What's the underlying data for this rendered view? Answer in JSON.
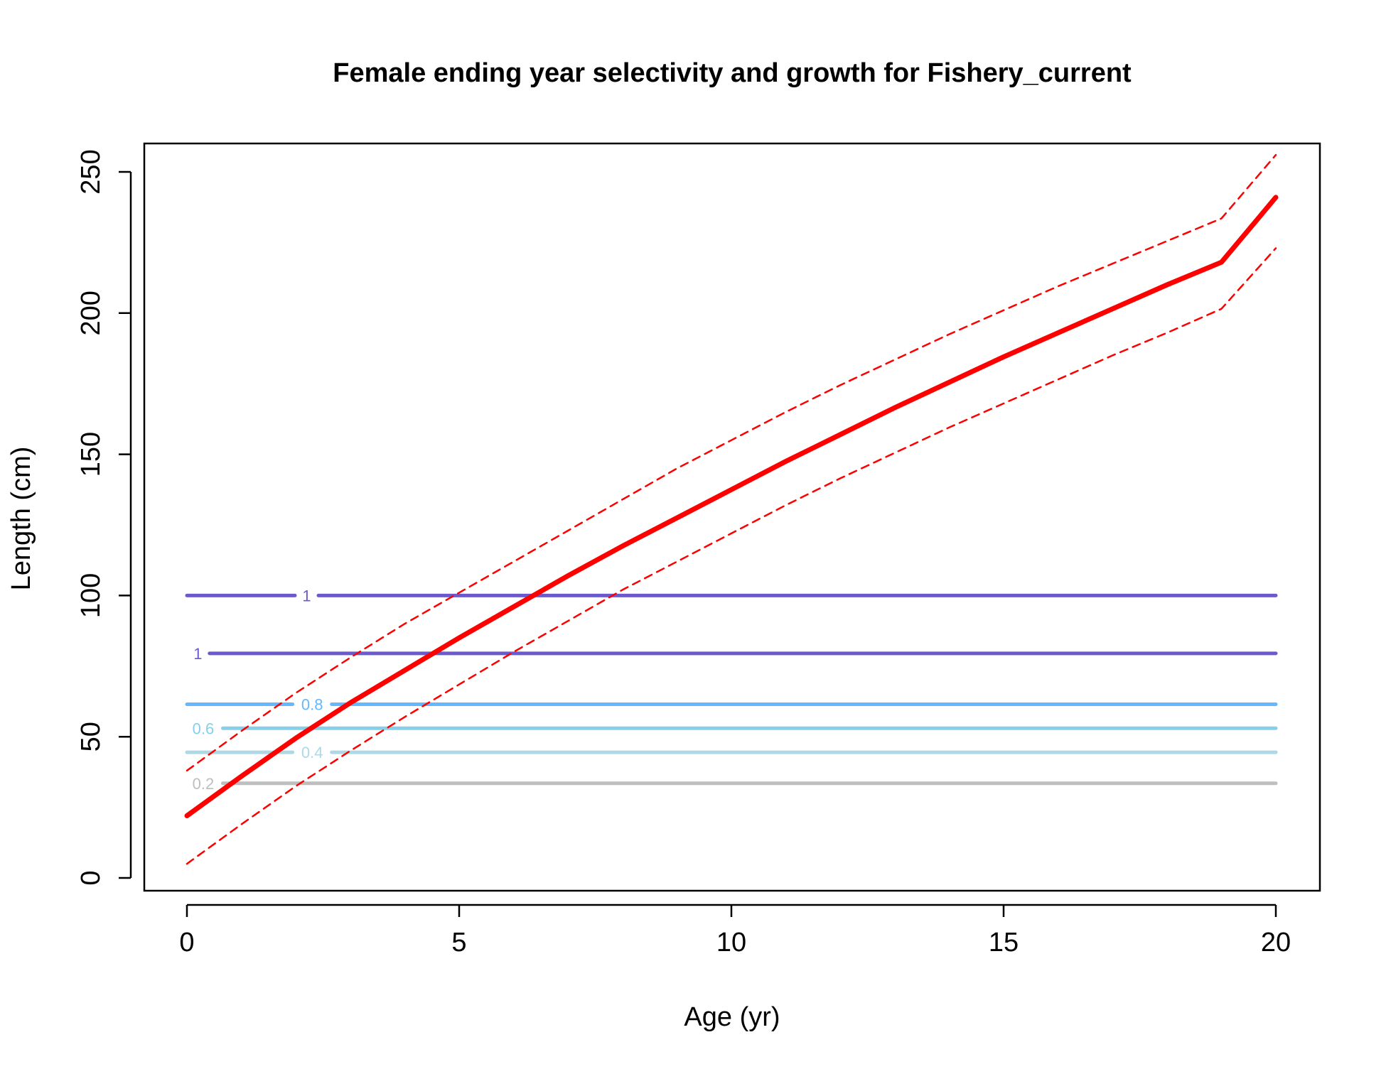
{
  "chart_data": {
    "type": "line",
    "title": "Female ending year selectivity and growth for Fishery_current",
    "xlabel": "Age (yr)",
    "ylabel": "Length (cm)",
    "xlim": [
      0,
      20
    ],
    "ylim": [
      0,
      250
    ],
    "x_ticks": [
      0,
      5,
      10,
      15,
      20
    ],
    "y_ticks": [
      0,
      50,
      100,
      150,
      200,
      250
    ],
    "grid": false,
    "legend": "none",
    "series": [
      {
        "kind": "mean",
        "color": "#ff0000",
        "style": "solid",
        "x": [
          0,
          1,
          2,
          3,
          4,
          5,
          6,
          7,
          8,
          9,
          10,
          11,
          12,
          13,
          14,
          15,
          16,
          17,
          18,
          19,
          20
        ],
        "y": [
          22,
          36,
          49.5,
          62,
          73.5,
          85,
          96,
          107,
          117.5,
          127.5,
          137.5,
          147.5,
          157,
          166.5,
          175.5,
          184.5,
          193,
          201.5,
          210,
          218,
          241
        ]
      },
      {
        "kind": "upper",
        "color": "#ff0000",
        "style": "dashed",
        "x": [
          0,
          1,
          2,
          3,
          4,
          5,
          6,
          7,
          8,
          9,
          10,
          11,
          12,
          13,
          14,
          15,
          16,
          17,
          18,
          19,
          20
        ],
        "y": [
          38,
          52,
          65.5,
          78,
          90,
          101,
          112,
          123,
          134,
          145,
          155,
          165,
          174.5,
          183.5,
          192.5,
          201,
          209.5,
          217.5,
          225.5,
          233.5,
          256
        ]
      },
      {
        "kind": "lower",
        "color": "#ff0000",
        "style": "dashed",
        "x": [
          0,
          1,
          2,
          3,
          4,
          5,
          6,
          7,
          8,
          9,
          10,
          11,
          12,
          13,
          14,
          15,
          16,
          17,
          18,
          19,
          20
        ],
        "y": [
          5,
          19,
          32.5,
          45,
          57,
          68.5,
          80,
          91,
          102,
          112,
          122,
          132,
          141.5,
          150.5,
          159.5,
          168,
          176.5,
          185,
          193,
          201.5,
          223
        ]
      }
    ],
    "contours": [
      {
        "level": "1",
        "y": 100,
        "color": "#6a5acd",
        "label_x": 2.2
      },
      {
        "level": "1",
        "y": 79.5,
        "color": "#6a5acd",
        "label_x": 0.2
      },
      {
        "level": "0.8",
        "y": 61.5,
        "color": "#63b8ff",
        "label_x": 2.3
      },
      {
        "level": "0.6",
        "y": 53,
        "color": "#87ceeb",
        "label_x": 0.3
      },
      {
        "level": "0.4",
        "y": 44.5,
        "color": "#add8e6",
        "label_x": 2.3
      },
      {
        "level": "0.2",
        "y": 33.5,
        "color": "#bebebe",
        "label_x": 0.3
      }
    ]
  }
}
